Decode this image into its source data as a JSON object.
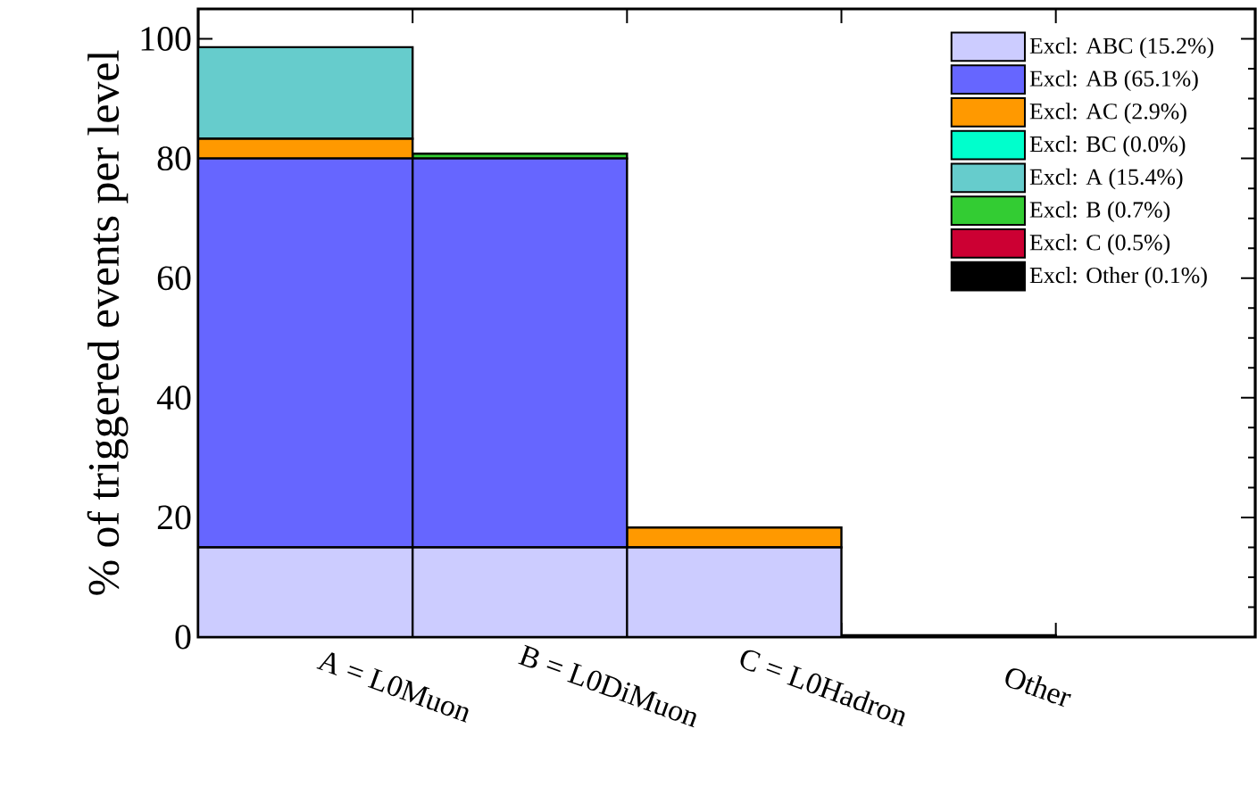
{
  "chart_data": {
    "type": "bar",
    "stacked": true,
    "ylabel": "% of triggered events per level",
    "categories": [
      "A = L0Muon",
      "B = L0DiMuon",
      "C = L0Hadron",
      "Other"
    ],
    "series": [
      {
        "name": "Excl: ABC (15.2%)",
        "color": "#ccccff",
        "values": [
          15.0,
          15.0,
          15.0,
          0
        ]
      },
      {
        "name": "Excl: AB  (65.1%)",
        "color": "#6666ff",
        "values": [
          65.0,
          65.0,
          0,
          0
        ]
      },
      {
        "name": "Excl: AC  (2.9%)",
        "color": "#ff9900",
        "values": [
          3.3,
          0,
          3.3,
          0
        ]
      },
      {
        "name": "Excl: BC  (0.0%)",
        "color": "#00ffcc",
        "values": [
          0,
          0,
          0,
          0
        ]
      },
      {
        "name": "Excl: A   (15.4%)",
        "color": "#66cccc",
        "values": [
          15.3,
          0,
          0,
          0
        ]
      },
      {
        "name": "Excl: B   (0.7%)",
        "color": "#33cc33",
        "values": [
          0,
          0.8,
          0,
          0
        ]
      },
      {
        "name": "Excl: C   (0.5%)",
        "color": "#cc0033",
        "values": [
          0,
          0,
          0,
          0
        ]
      },
      {
        "name": "Excl: Other (0.1%)",
        "color": "#000000",
        "values": [
          0,
          0,
          0,
          0.3
        ]
      }
    ],
    "ylim": [
      0,
      105
    ],
    "yticks": [
      0,
      20,
      40,
      60,
      80,
      100
    ],
    "grid": false,
    "legend": "top right"
  }
}
